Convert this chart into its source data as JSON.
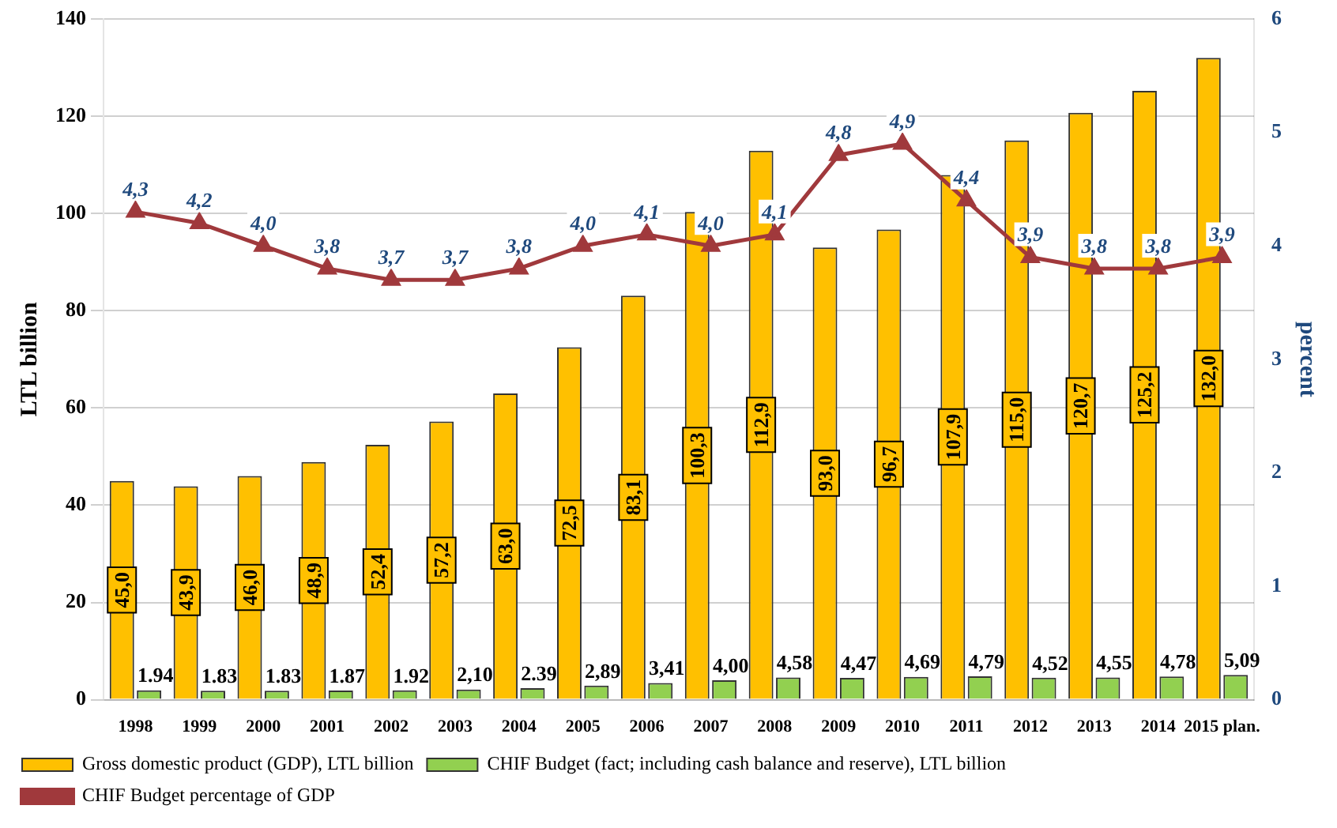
{
  "chart_data": {
    "type": "bar",
    "categories": [
      "1998",
      "1999",
      "2000",
      "2001",
      "2002",
      "2003",
      "2004",
      "2005",
      "2006",
      "2007",
      "2008",
      "2009",
      "2010",
      "2011",
      "2012",
      "2013",
      "2014",
      "2015 plan."
    ],
    "ylabel": "LTL billion",
    "y2label": "percent",
    "ylim": [
      0,
      140
    ],
    "yticks": [
      0,
      20,
      40,
      60,
      80,
      100,
      120,
      140
    ],
    "y2lim": [
      0,
      6
    ],
    "y2ticks": [
      0,
      1,
      2,
      3,
      4,
      5,
      6
    ],
    "grid": "y",
    "legend": "bottom",
    "series": [
      {
        "name": "Gross domestic product (GDP), LTL billion",
        "color": "#ffc000",
        "values": [
          45.0,
          43.9,
          46.0,
          48.9,
          52.4,
          57.2,
          63.0,
          72.5,
          83.1,
          100.3,
          112.9,
          93.0,
          96.7,
          107.9,
          115.0,
          120.7,
          125.2,
          132.0
        ],
        "value_labels": [
          "45,0",
          "43,9",
          "46,0",
          "48,9",
          "52,4",
          "57,2",
          "63,0",
          "72,5",
          "83,1",
          "100,3",
          "112,9",
          "93,0",
          "96,7",
          "107,9",
          "115,0",
          "120,7",
          "125,2",
          "132,0"
        ]
      },
      {
        "name": "CHIF Budget (fact; including cash balance and reserve), LTL billion",
        "color": "#92d050",
        "values": [
          1.94,
          1.83,
          1.83,
          1.87,
          1.92,
          2.1,
          2.39,
          2.89,
          3.41,
          4.0,
          4.58,
          4.47,
          4.69,
          4.79,
          4.52,
          4.55,
          4.78,
          5.09
        ],
        "value_labels": [
          "1.94",
          "1.83",
          "1.83",
          "1.87",
          "1.92",
          "2,10",
          "2.39",
          "2,89",
          "3,41",
          "4,00",
          "4,58",
          "4,47",
          "4,69",
          "4,79",
          "4,52",
          "4,55",
          "4,78",
          "5,09"
        ]
      },
      {
        "name": "CHIF Budget percentage of GDP",
        "type": "line",
        "axis": "y2",
        "color": "#a0393c",
        "marker": "triangle",
        "line_style": "solid",
        "values": [
          4.3,
          4.2,
          4.0,
          3.8,
          3.7,
          3.7,
          3.8,
          4.0,
          4.1,
          4.0,
          4.1,
          4.8,
          4.9,
          4.4,
          3.9,
          3.8,
          3.8,
          3.9
        ],
        "value_labels": [
          "4,3",
          "4,2",
          "4,0",
          "3,8",
          "3,7",
          "3,7",
          "3,8",
          "4,0",
          "4,1",
          "4,0",
          "4,1",
          "4,8",
          "4,9",
          "4,4",
          "3,9",
          "3,8",
          "3,8",
          "3,9"
        ]
      }
    ]
  }
}
